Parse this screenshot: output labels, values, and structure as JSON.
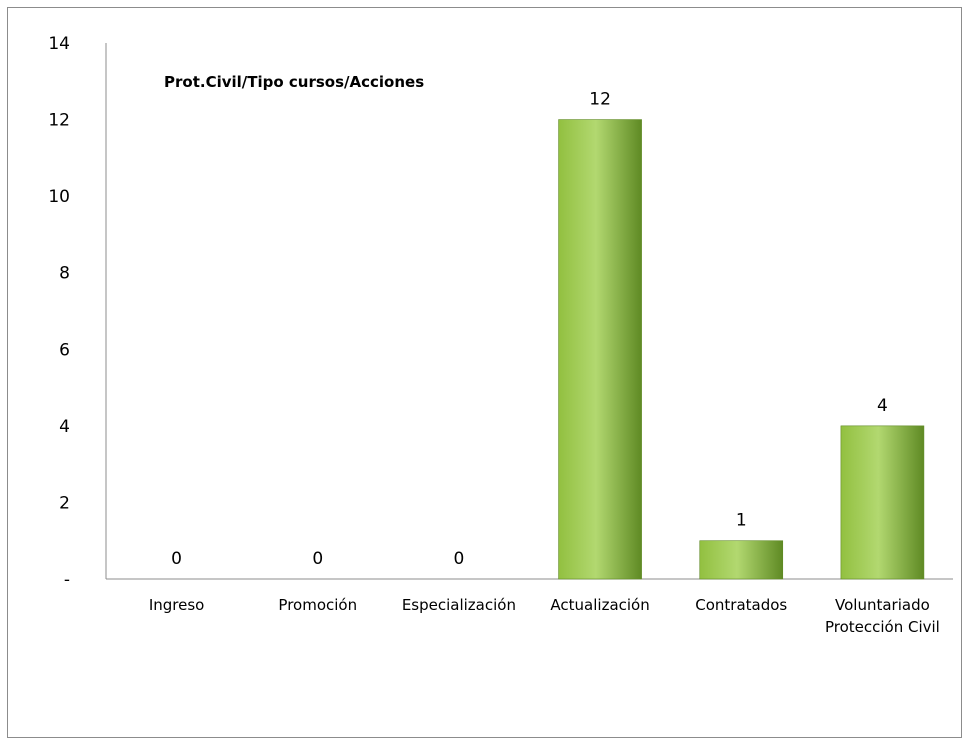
{
  "chart_data": {
    "type": "bar",
    "title": "Prot.Civil/Tipo cursos/Acciones",
    "categories": [
      "Ingreso",
      "Promoción",
      "Especialización",
      "Actualización",
      "Contratados",
      "Voluntariado Protección Civil"
    ],
    "category_lines": [
      [
        "Ingreso"
      ],
      [
        "Promoción"
      ],
      [
        "Especialización"
      ],
      [
        "Actualización"
      ],
      [
        "Contratados"
      ],
      [
        "Voluntariado",
        "Protección Civil"
      ]
    ],
    "values": [
      0,
      0,
      0,
      12,
      1,
      4
    ],
    "data_labels": [
      "0",
      "0",
      "0",
      "12",
      "1",
      "4"
    ],
    "ylim": [
      0,
      14
    ],
    "yticks": [
      {
        "value": 0,
        "label": "-"
      },
      {
        "value": 2,
        "label": "2"
      },
      {
        "value": 4,
        "label": "4"
      },
      {
        "value": 6,
        "label": "6"
      },
      {
        "value": 8,
        "label": "8"
      },
      {
        "value": 10,
        "label": "10"
      },
      {
        "value": 12,
        "label": "12"
      },
      {
        "value": 14,
        "label": "14"
      }
    ],
    "grid": false,
    "legend": "none",
    "bar_color": "#92c040",
    "bar_color_light": "#b2d870",
    "bar_color_dark": "#5f8a24"
  }
}
